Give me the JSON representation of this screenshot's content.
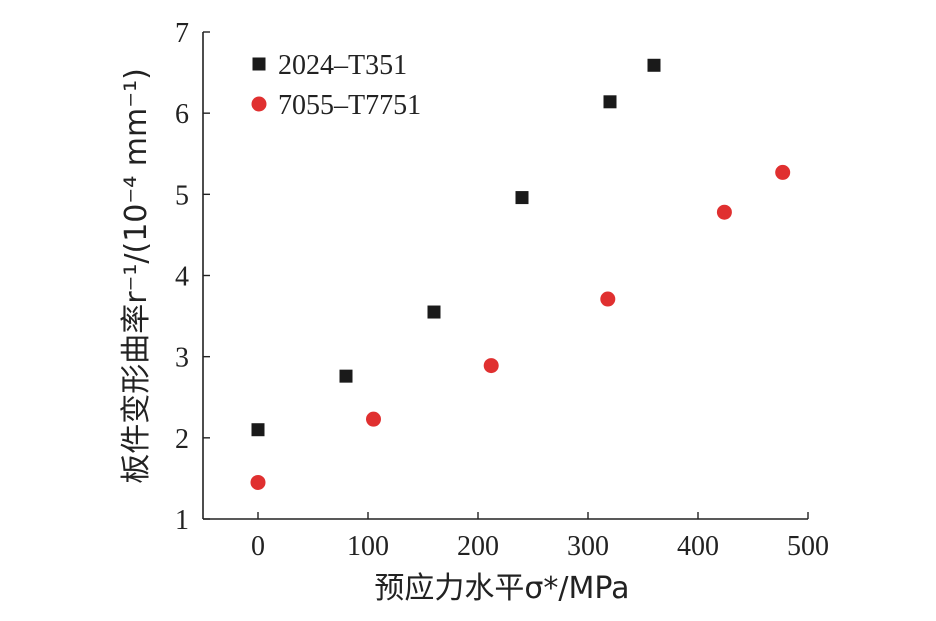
{
  "chart_data": {
    "type": "scatter",
    "xlabel": "预应力水平σ*/MPa",
    "ylabel": "板件变形曲率r⁻¹/(10⁻⁴ mm⁻¹)",
    "xlim": [
      -50,
      500
    ],
    "ylim": [
      1,
      7
    ],
    "xticks": [
      0,
      100,
      200,
      300,
      400,
      500
    ],
    "xtick_labels": [
      "0",
      "100",
      "200",
      "300",
      "400",
      "500"
    ],
    "yticks": [
      1,
      2,
      3,
      4,
      5,
      6,
      7
    ],
    "ytick_labels": [
      "1",
      "2",
      "3",
      "4",
      "5",
      "6",
      "7"
    ],
    "grid": false,
    "legend_position": "top-left",
    "series": [
      {
        "name": "2024–T351",
        "marker": "square",
        "color": "#1a1a1a",
        "x": [
          0,
          80,
          160,
          240,
          320,
          360
        ],
        "y": [
          2.1,
          2.76,
          3.55,
          4.96,
          6.14,
          6.59
        ]
      },
      {
        "name": "7055–T7751",
        "marker": "circle",
        "color": "#e03030",
        "x": [
          0,
          105,
          212,
          318,
          424,
          477
        ],
        "y": [
          1.45,
          2.23,
          2.89,
          3.71,
          4.78,
          5.27
        ]
      }
    ]
  }
}
